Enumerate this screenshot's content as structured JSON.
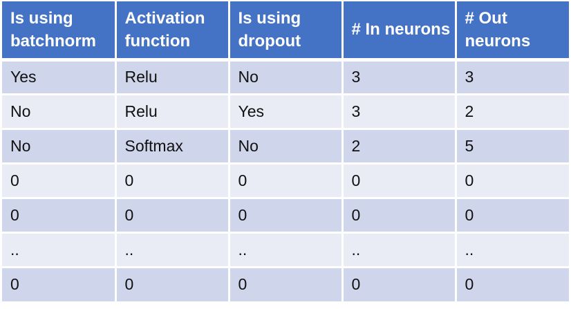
{
  "table": {
    "headers": [
      "Is using batchnorm",
      "Activation function",
      "Is using dropout",
      "# In neurons",
      "# Out neurons"
    ],
    "rows": [
      [
        "Yes",
        "Relu",
        "No",
        "3",
        "3"
      ],
      [
        "No",
        "Relu",
        "Yes",
        "3",
        "2"
      ],
      [
        "No",
        "Softmax",
        "No",
        "2",
        "5"
      ],
      [
        "0",
        "0",
        "0",
        "0",
        "0"
      ],
      [
        "0",
        "0",
        "0",
        "0",
        "0"
      ],
      [
        "..",
        "..",
        "..",
        "..",
        ".."
      ],
      [
        "0",
        "0",
        "0",
        "0",
        "0"
      ]
    ]
  },
  "colors": {
    "header_bg": "#4472c4",
    "header_text": "#ffffff",
    "row_odd_bg": "#cfd5ea",
    "row_even_bg": "#e9ebf5",
    "cell_text": "#111111"
  }
}
